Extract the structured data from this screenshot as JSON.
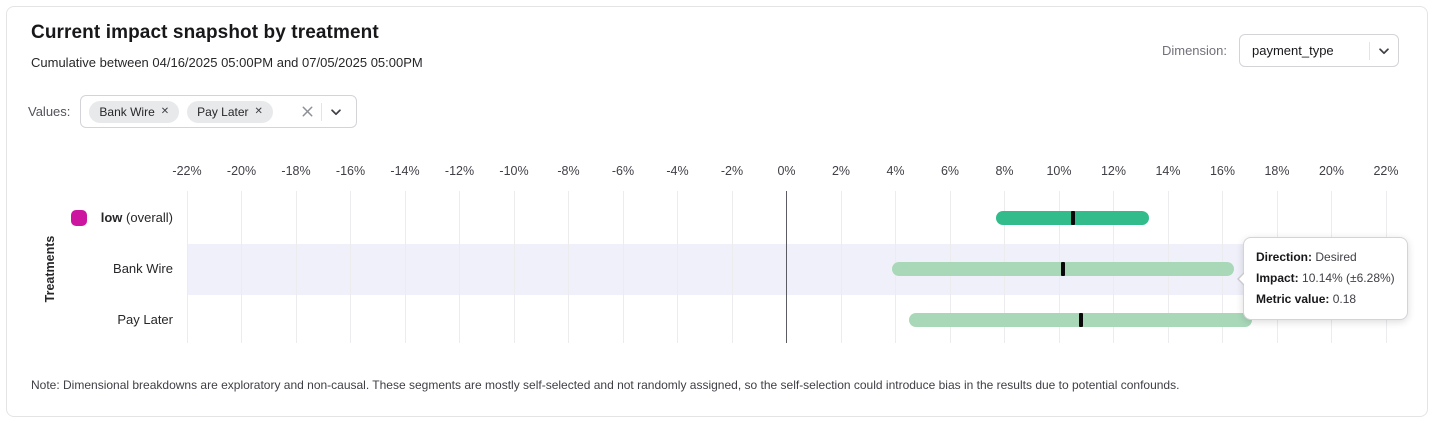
{
  "header": {
    "title": "Current impact snapshot by treatment",
    "subtitle": "Cumulative between 04/16/2025 05:00PM and 07/05/2025 05:00PM",
    "dimension_label": "Dimension:",
    "dimension_value": "payment_type"
  },
  "filters": {
    "label": "Values:",
    "chips": [
      {
        "label": "Bank Wire",
        "remove_icon": "✕"
      },
      {
        "label": "Pay Later",
        "remove_icon": "✕"
      }
    ]
  },
  "chart_data": {
    "type": "bar",
    "subtype": "horizontal_interval",
    "title": "Current impact snapshot by treatment",
    "ylabel": "Treatments",
    "x_axis": {
      "min": -22,
      "max": 22,
      "step": 2,
      "unit": "%",
      "tick_format": "percent"
    },
    "grid": "vertical-only",
    "zero_line": true,
    "rows": [
      {
        "label": "low",
        "label_suffix": " (overall)",
        "label_bold": true,
        "swatch_color": "#cc16a0",
        "low": 7.7,
        "center": 10.5,
        "high": 13.3,
        "bar_color": "#32bc8c",
        "highlighted": false
      },
      {
        "label": "Bank Wire",
        "label_suffix": "",
        "label_bold": false,
        "low": 3.86,
        "center": 10.14,
        "high": 16.42,
        "bar_color": "#a9d8b9",
        "highlighted": true
      },
      {
        "label": "Pay Later",
        "label_suffix": "",
        "label_bold": false,
        "low": 4.5,
        "center": 10.8,
        "high": 17.1,
        "bar_color": "#a9d8b9",
        "highlighted": false
      }
    ],
    "marker_color": "#09090b",
    "highlight_band_color": "#f0f0fb"
  },
  "tooltip": {
    "attached_row": "Bank Wire",
    "lines": [
      {
        "label": "Direction:",
        "value": " Desired"
      },
      {
        "label": "Impact:",
        "value": " 10.14% (±6.28%)"
      },
      {
        "label": "Metric value:",
        "value": " 0.18"
      }
    ]
  },
  "note": "Note: Dimensional breakdowns are exploratory and non-causal. These segments are mostly self-selected and not randomly assigned, so the self-selection could introduce bias in the results due to potential confounds.",
  "colors": {
    "overall_bar": "#32bc8c",
    "segment_bar": "#a9d8b9",
    "legend_swatch": "#cc16a0",
    "highlight_band": "#f0f0fb",
    "marker": "#09090b"
  }
}
